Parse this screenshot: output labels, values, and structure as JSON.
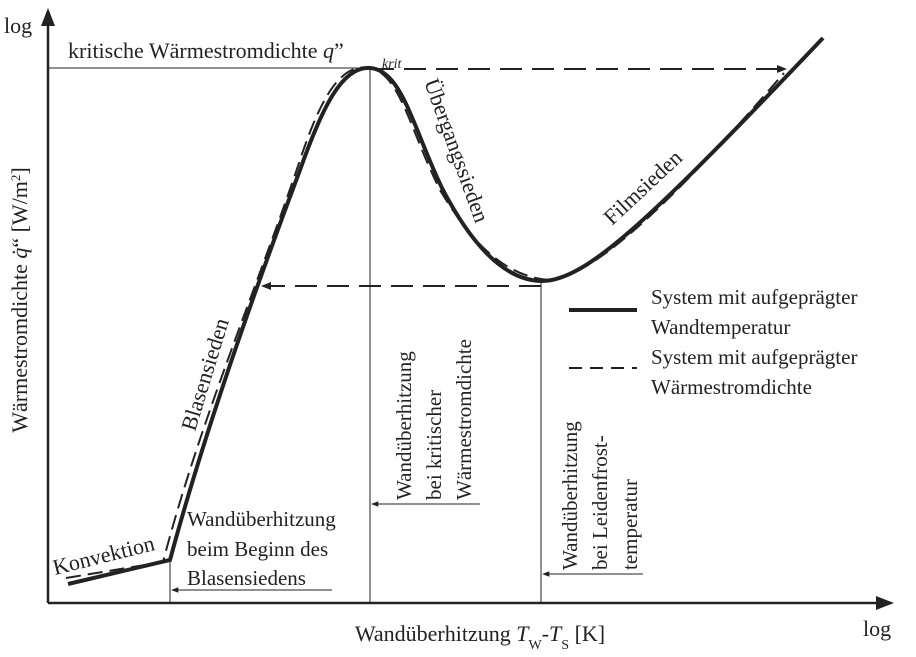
{
  "chart_data": {
    "type": "line",
    "title": "",
    "x_axis": {
      "scale": "log",
      "tick_label_end": "log",
      "label_main": "Wandüberhitzung ",
      "label_T1": "T",
      "label_W": "W",
      "label_minus": "-",
      "label_T2": "T",
      "label_S": "S",
      "label_unit": " [K]"
    },
    "y_axis": {
      "scale": "log",
      "tick_label_end": "log",
      "label_main": "Wärmestromdichte ",
      "label_q": "q̇",
      "label_prime": "“ ",
      "label_unit_open": "[W/m",
      "label_sup": "2",
      "label_unit_close": "]"
    },
    "critical_heat_flux": {
      "text": "kritische Wärmestromdichte ",
      "symbol": "q",
      "quote": "”",
      "subscript": "krit"
    },
    "regions": [
      "Konvektion",
      "Blasensieden",
      "Übergangssieden",
      "Filmsieden"
    ],
    "superheat_markers": [
      {
        "lines": [
          "Wandüberhitzung",
          "beim Beginn des",
          "Blasensiedens"
        ]
      },
      {
        "lines": [
          "Wandüberhitzung",
          "bei kritischer",
          "Wärmestromdichte"
        ]
      },
      {
        "lines": [
          "Wandüberhitzung",
          "bei Leidenfrost-",
          "temperatur"
        ]
      }
    ],
    "series": [
      {
        "name": "System mit aufgeprägter Wandtemperatur",
        "style": "solid",
        "color": "#222222"
      },
      {
        "name": "System mit aufgeprägter Wärmestromdichte",
        "style": "dashed",
        "color": "#222222"
      }
    ],
    "legend": {
      "entries": [
        {
          "line1": "System mit aufgeprägter",
          "line2": "Wandtemperatur",
          "style": "solid"
        },
        {
          "line1": "System mit aufgeprägter",
          "line2": "Wärmestromdichte",
          "style": "dashed"
        }
      ],
      "placement": "right"
    },
    "grid": false
  }
}
